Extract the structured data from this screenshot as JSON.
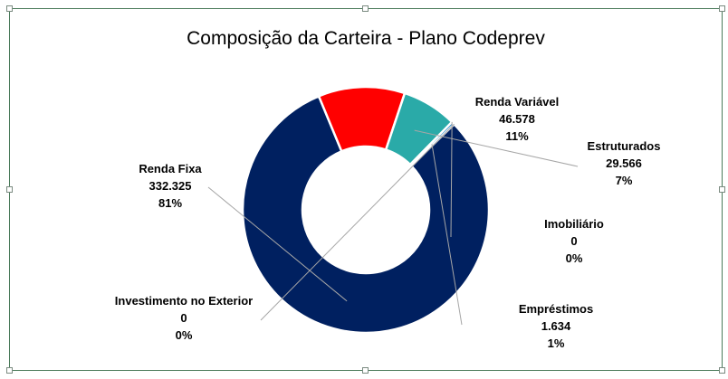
{
  "chart_data": {
    "type": "pie",
    "title": "Composição da Carteira - Plano Codeprev",
    "donut": true,
    "slices": [
      {
        "name": "Renda Fixa",
        "value": 332325,
        "value_label": "332.325",
        "pct_label": "81%",
        "color": "#002060"
      },
      {
        "name": "Renda Variável",
        "value": 46578,
        "value_label": "46.578",
        "pct_label": "11%",
        "color": "#ff0000"
      },
      {
        "name": "Estruturados",
        "value": 29566,
        "value_label": "29.566",
        "pct_label": "7%",
        "color": "#2aaaa8"
      },
      {
        "name": "Imobiliário",
        "value": 0,
        "value_label": "0",
        "pct_label": "0%",
        "color": "#7f7f7f"
      },
      {
        "name": "Empréstimos",
        "value": 1634,
        "value_label": "1.634",
        "pct_label": "1%",
        "color": "#0070c0"
      },
      {
        "name": "Investimento no Exterior",
        "value": 0,
        "value_label": "0",
        "pct_label": "0%",
        "color": "#7030a0"
      }
    ]
  }
}
